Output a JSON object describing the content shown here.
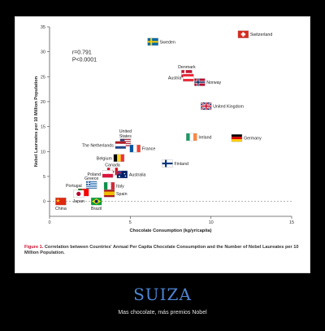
{
  "chart_data": {
    "type": "scatter",
    "title": "",
    "xlabel": "Chocolate Consumption (kg/yr/capita)",
    "ylabel": "Nobel Laureates per 10 Million Population",
    "xlim": [
      0,
      15
    ],
    "ylim": [
      -3,
      35
    ],
    "xticks": [
      0,
      5,
      10,
      15
    ],
    "yticks": [
      0,
      5,
      10,
      15,
      20,
      25,
      30,
      35
    ],
    "grid": false,
    "annotation": "r=0.791\nP<0.0001",
    "points": [
      {
        "name": "Switzerland",
        "x": 12.0,
        "y": 33.5,
        "flag": "switzerland"
      },
      {
        "name": "Sweden",
        "x": 6.4,
        "y": 32.0,
        "flag": "sweden"
      },
      {
        "name": "Denmark",
        "x": 8.5,
        "y": 25.6,
        "flag": "denmark"
      },
      {
        "name": "Austria",
        "x": 8.6,
        "y": 24.8,
        "flag": "austria"
      },
      {
        "name": "Norway",
        "x": 9.3,
        "y": 23.9,
        "flag": "norway"
      },
      {
        "name": "United Kingdom",
        "x": 9.7,
        "y": 19.1,
        "flag": "uk"
      },
      {
        "name": "Ireland",
        "x": 8.8,
        "y": 12.9,
        "flag": "ireland"
      },
      {
        "name": "Germany",
        "x": 11.6,
        "y": 12.7,
        "flag": "germany"
      },
      {
        "name": "United States",
        "x": 4.7,
        "y": 11.8,
        "flag": "usa"
      },
      {
        "name": "The Netherlands",
        "x": 4.4,
        "y": 11.3,
        "flag": "netherlands"
      },
      {
        "name": "France",
        "x": 5.3,
        "y": 10.6,
        "flag": "france"
      },
      {
        "name": "Belgium",
        "x": 4.3,
        "y": 8.7,
        "flag": "belgium"
      },
      {
        "name": "Finland",
        "x": 7.3,
        "y": 7.6,
        "flag": "finland"
      },
      {
        "name": "Canada",
        "x": 3.9,
        "y": 6.0,
        "flag": "canada"
      },
      {
        "name": "Poland",
        "x": 3.6,
        "y": 5.5,
        "flag": "poland"
      },
      {
        "name": "Australia",
        "x": 4.5,
        "y": 5.4,
        "flag": "australia"
      },
      {
        "name": "Greece",
        "x": 2.6,
        "y": 3.3,
        "flag": "greece"
      },
      {
        "name": "Italy",
        "x": 3.7,
        "y": 3.1,
        "flag": "italy"
      },
      {
        "name": "Portugal",
        "x": 2.1,
        "y": 1.8,
        "flag": "portugal"
      },
      {
        "name": "Spain",
        "x": 3.7,
        "y": 1.6,
        "flag": "spain"
      },
      {
        "name": "Japan",
        "x": 1.8,
        "y": 1.5,
        "flag": "japan"
      },
      {
        "name": "Brazil",
        "x": 2.9,
        "y": 0.0,
        "flag": "brazil"
      },
      {
        "name": "China",
        "x": 0.7,
        "y": 0.0,
        "flag": "china"
      }
    ]
  },
  "caption": {
    "figure_label": "Figure 1.",
    "text": "Correlation between Countries' Annual Per Capita Chocolate Consumption and the Number of Nobel Laureates per 10 Million Population."
  },
  "title": "SUIZA",
  "subtitle": "Mas chocolate, más premios Nobel",
  "colors": {
    "axis": "#555555",
    "caption_accent": "#c8102e",
    "title": "#4d86d6"
  }
}
